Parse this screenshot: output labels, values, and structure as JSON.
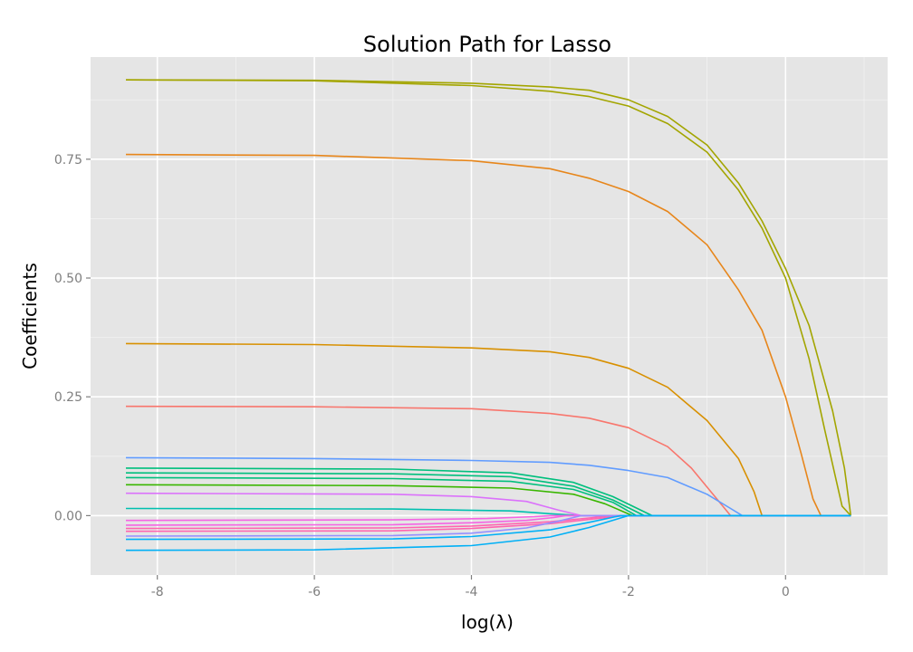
{
  "chart_data": {
    "type": "line",
    "title": "Solution Path for Lasso",
    "xlabel": "log(λ)",
    "ylabel": "Coefficients",
    "xlim": [
      -8.85,
      1.3
    ],
    "ylim": [
      -0.125,
      0.965
    ],
    "x_ticks": [
      -8,
      -6,
      -4,
      -2,
      0
    ],
    "x_tick_labels": [
      "-8",
      "-6",
      "-4",
      "-2",
      "0"
    ],
    "y_ticks": [
      0,
      0.25,
      0.5,
      0.75
    ],
    "y_tick_labels": [
      "0.00",
      "0.25",
      "0.50",
      "0.75"
    ],
    "grid": true,
    "legend": "none",
    "series": [
      {
        "color": "#A3A500",
        "points": [
          [
            -8.4,
            0.917
          ],
          [
            -6,
            0.916
          ],
          [
            -4,
            0.91
          ],
          [
            -3,
            0.902
          ],
          [
            -2.5,
            0.895
          ],
          [
            -2,
            0.875
          ],
          [
            -1.5,
            0.84
          ],
          [
            -1,
            0.78
          ],
          [
            -0.6,
            0.7
          ],
          [
            -0.3,
            0.62
          ],
          [
            0,
            0.52
          ],
          [
            0.3,
            0.4
          ],
          [
            0.6,
            0.22
          ],
          [
            0.75,
            0.1
          ],
          [
            0.83,
            0.0
          ]
        ]
      },
      {
        "color": "#A3A500",
        "points": [
          [
            -8.4,
            0.917
          ],
          [
            -6,
            0.915
          ],
          [
            -4,
            0.905
          ],
          [
            -3,
            0.893
          ],
          [
            -2.5,
            0.882
          ],
          [
            -2,
            0.862
          ],
          [
            -1.5,
            0.825
          ],
          [
            -1,
            0.765
          ],
          [
            -0.6,
            0.685
          ],
          [
            -0.3,
            0.605
          ],
          [
            0,
            0.5
          ],
          [
            0.3,
            0.33
          ],
          [
            0.5,
            0.18
          ],
          [
            0.72,
            0.02
          ],
          [
            0.83,
            0.0
          ]
        ]
      },
      {
        "color": "#E7861B",
        "points": [
          [
            -8.4,
            0.76
          ],
          [
            -6,
            0.758
          ],
          [
            -4,
            0.747
          ],
          [
            -3,
            0.73
          ],
          [
            -2.5,
            0.71
          ],
          [
            -2,
            0.682
          ],
          [
            -1.5,
            0.64
          ],
          [
            -1,
            0.57
          ],
          [
            -0.6,
            0.475
          ],
          [
            -0.3,
            0.39
          ],
          [
            0,
            0.25
          ],
          [
            0.2,
            0.13
          ],
          [
            0.35,
            0.035
          ],
          [
            0.45,
            0.0
          ],
          [
            0.83,
            0.0
          ]
        ]
      },
      {
        "color": "#D89000",
        "points": [
          [
            -8.4,
            0.362
          ],
          [
            -6,
            0.36
          ],
          [
            -4,
            0.353
          ],
          [
            -3,
            0.345
          ],
          [
            -2.5,
            0.333
          ],
          [
            -2,
            0.31
          ],
          [
            -1.5,
            0.27
          ],
          [
            -1,
            0.2
          ],
          [
            -0.6,
            0.12
          ],
          [
            -0.4,
            0.05
          ],
          [
            -0.3,
            0.0
          ],
          [
            0.83,
            0.0
          ]
        ]
      },
      {
        "color": "#F8766D",
        "points": [
          [
            -8.4,
            0.23
          ],
          [
            -6,
            0.229
          ],
          [
            -4,
            0.225
          ],
          [
            -3,
            0.215
          ],
          [
            -2.5,
            0.205
          ],
          [
            -2,
            0.185
          ],
          [
            -1.5,
            0.145
          ],
          [
            -1.2,
            0.1
          ],
          [
            -0.9,
            0.04
          ],
          [
            -0.7,
            0.0
          ],
          [
            0.83,
            0.0
          ]
        ]
      },
      {
        "color": "#39B600",
        "points": [
          [
            -8.4,
            0.065
          ],
          [
            -5,
            0.063
          ],
          [
            -3.5,
            0.058
          ],
          [
            -2.7,
            0.045
          ],
          [
            -2.3,
            0.025
          ],
          [
            -1.95,
            0.0
          ],
          [
            0.83,
            0.0
          ]
        ]
      },
      {
        "color": "#00BF7D",
        "points": [
          [
            -8.4,
            0.1
          ],
          [
            -5,
            0.098
          ],
          [
            -3.5,
            0.09
          ],
          [
            -2.7,
            0.07
          ],
          [
            -2.2,
            0.04
          ],
          [
            -1.7,
            0.0
          ],
          [
            0.83,
            0.0
          ]
        ]
      },
      {
        "color": "#00BF7D",
        "points": [
          [
            -8.4,
            0.09
          ],
          [
            -5,
            0.088
          ],
          [
            -3.5,
            0.082
          ],
          [
            -2.7,
            0.062
          ],
          [
            -2.2,
            0.033
          ],
          [
            -1.8,
            0.0
          ],
          [
            0.83,
            0.0
          ]
        ]
      },
      {
        "color": "#00BF7D",
        "points": [
          [
            -8.4,
            0.08
          ],
          [
            -5,
            0.078
          ],
          [
            -3.5,
            0.072
          ],
          [
            -2.7,
            0.055
          ],
          [
            -2.2,
            0.028
          ],
          [
            -1.9,
            0.0
          ],
          [
            0.83,
            0.0
          ]
        ]
      },
      {
        "color": "#00C0AF",
        "points": [
          [
            -8.4,
            0.015
          ],
          [
            -5,
            0.014
          ],
          [
            -3.5,
            0.01
          ],
          [
            -3,
            0.004
          ],
          [
            -2.6,
            0.0
          ],
          [
            0.83,
            0.0
          ]
        ]
      },
      {
        "color": "#619CFF",
        "points": [
          [
            -8.4,
            0.122
          ],
          [
            -6,
            0.12
          ],
          [
            -4,
            0.116
          ],
          [
            -3,
            0.112
          ],
          [
            -2.5,
            0.106
          ],
          [
            -2,
            0.095
          ],
          [
            -1.5,
            0.08
          ],
          [
            -1,
            0.045
          ],
          [
            -0.7,
            0.015
          ],
          [
            -0.55,
            0.0
          ],
          [
            0.83,
            0.0
          ]
        ]
      },
      {
        "color": "#DB72FB",
        "points": [
          [
            -8.4,
            0.047
          ],
          [
            -5,
            0.045
          ],
          [
            -4,
            0.04
          ],
          [
            -3.3,
            0.03
          ],
          [
            -2.9,
            0.012
          ],
          [
            -2.6,
            0.0
          ],
          [
            0.83,
            0.0
          ]
        ]
      },
      {
        "color": "#F564E3",
        "points": [
          [
            -8.4,
            -0.01
          ],
          [
            -5,
            -0.009
          ],
          [
            -3.8,
            -0.006
          ],
          [
            -3.2,
            -0.002
          ],
          [
            -3,
            0.0
          ],
          [
            0.83,
            0.0
          ]
        ]
      },
      {
        "color": "#F564E3",
        "points": [
          [
            -8.4,
            -0.02
          ],
          [
            -5,
            -0.019
          ],
          [
            -4,
            -0.015
          ],
          [
            -3.3,
            -0.01
          ],
          [
            -2.95,
            -0.004
          ],
          [
            -2.8,
            0.0
          ],
          [
            0.83,
            0.0
          ]
        ]
      },
      {
        "color": "#FF64B0",
        "points": [
          [
            -8.4,
            -0.027
          ],
          [
            -5,
            -0.026
          ],
          [
            -4,
            -0.022
          ],
          [
            -3,
            -0.013
          ],
          [
            -2.5,
            -0.005
          ],
          [
            -2.2,
            0.0
          ],
          [
            0.83,
            0.0
          ]
        ]
      },
      {
        "color": "#FF64B0",
        "points": [
          [
            -8.4,
            -0.033
          ],
          [
            -5,
            -0.032
          ],
          [
            -4,
            -0.027
          ],
          [
            -3,
            -0.017
          ],
          [
            -2.5,
            -0.008
          ],
          [
            -2.05,
            0.0
          ],
          [
            0.83,
            0.0
          ]
        ]
      },
      {
        "color": "#9590FF",
        "points": [
          [
            -8.4,
            -0.043
          ],
          [
            -5,
            -0.042
          ],
          [
            -4,
            -0.037
          ],
          [
            -3.3,
            -0.026
          ],
          [
            -2.9,
            -0.012
          ],
          [
            -2.6,
            0.0
          ],
          [
            0.83,
            0.0
          ]
        ]
      },
      {
        "color": "#00B0F6",
        "points": [
          [
            -8.4,
            -0.05
          ],
          [
            -5,
            -0.049
          ],
          [
            -4,
            -0.044
          ],
          [
            -3,
            -0.03
          ],
          [
            -2.5,
            -0.014
          ],
          [
            -2.1,
            0.0
          ],
          [
            0.83,
            0.0
          ]
        ]
      },
      {
        "color": "#00B0F6",
        "points": [
          [
            -8.4,
            -0.073
          ],
          [
            -6,
            -0.072
          ],
          [
            -4,
            -0.063
          ],
          [
            -3,
            -0.045
          ],
          [
            -2.5,
            -0.025
          ],
          [
            -2,
            0.0
          ],
          [
            0.83,
            0.0
          ]
        ]
      }
    ]
  }
}
